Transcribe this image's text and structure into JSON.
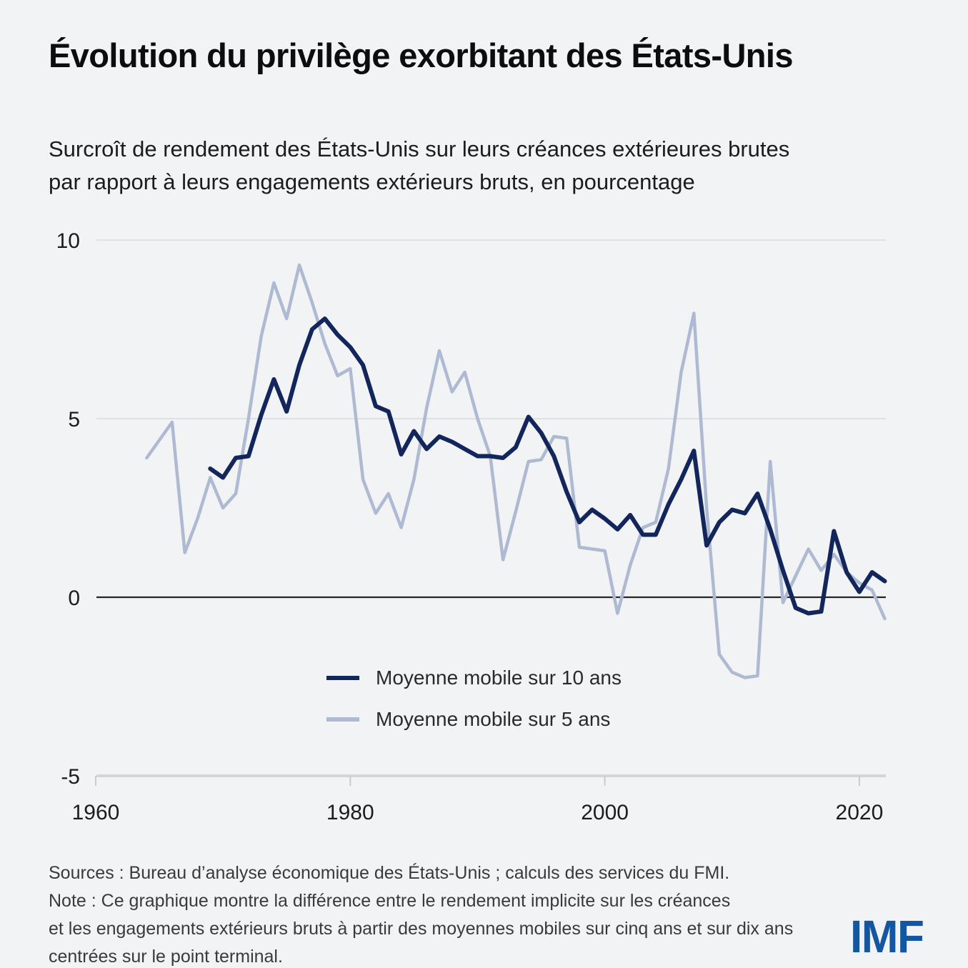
{
  "header": {
    "title": "Évolution du privilège exorbitant des États-Unis",
    "subtitle_lines": [
      "Surcroît de rendement des États-Unis sur leurs créances extérieures brutes",
      "par rapport à leurs engagements extérieurs bruts, en pourcentage"
    ]
  },
  "chart_data": {
    "type": "line",
    "title": "Évolution du privilège exorbitant des États-Unis",
    "ylabel": "pourcentage",
    "xlabel": "",
    "grid": "horizontal",
    "legend_position": "inside-bottom-center",
    "x_axis": {
      "min": 1960,
      "max": 2023,
      "ticks": [
        1960,
        1980,
        2000,
        2020
      ]
    },
    "y_axis": {
      "min": -5,
      "max": 10,
      "ticks": [
        10,
        5,
        0,
        -5
      ]
    },
    "series": [
      {
        "id": "ma10",
        "name": "Moyenne mobile sur 10 ans",
        "color": "#13265c",
        "years": [
          1969,
          1970,
          1971,
          1972,
          1973,
          1974,
          1975,
          1976,
          1977,
          1978,
          1979,
          1980,
          1981,
          1982,
          1983,
          1984,
          1985,
          1986,
          1987,
          1988,
          1989,
          1990,
          1991,
          1992,
          1993,
          1994,
          1995,
          1996,
          1997,
          1998,
          1999,
          2000,
          2001,
          2002,
          2003,
          2004,
          2005,
          2006,
          2007,
          2008,
          2009,
          2010,
          2011,
          2012,
          2013,
          2014,
          2015,
          2016,
          2017,
          2018,
          2019,
          2020,
          2021,
          2022
        ],
        "values": [
          3.6,
          3.35,
          3.9,
          3.95,
          5.1,
          6.1,
          5.2,
          6.5,
          7.5,
          7.8,
          7.35,
          7.0,
          6.5,
          5.35,
          5.2,
          4.0,
          4.65,
          4.15,
          4.5,
          4.35,
          4.15,
          3.95,
          3.95,
          3.9,
          4.2,
          5.05,
          4.6,
          3.95,
          2.95,
          2.1,
          2.45,
          2.2,
          1.9,
          2.3,
          1.75,
          1.75,
          2.6,
          3.3,
          4.1,
          1.45,
          2.1,
          2.45,
          2.35,
          2.9,
          1.9,
          0.75,
          -0.3,
          -0.45,
          -0.4,
          1.85,
          0.7,
          0.15,
          0.7,
          0.45
        ]
      },
      {
        "id": "ma5",
        "name": "Moyenne mobile sur 5 ans",
        "color": "#aeb9d2",
        "years": [
          1964,
          1965,
          1966,
          1967,
          1968,
          1969,
          1970,
          1971,
          1972,
          1973,
          1974,
          1975,
          1976,
          1977,
          1978,
          1979,
          1980,
          1981,
          1982,
          1983,
          1984,
          1985,
          1986,
          1987,
          1988,
          1989,
          1990,
          1991,
          1992,
          1993,
          1994,
          1995,
          1996,
          1997,
          1998,
          1999,
          2000,
          2001,
          2002,
          2003,
          2004,
          2005,
          2006,
          2007,
          2008,
          2009,
          2010,
          2011,
          2012,
          2013,
          2014,
          2015,
          2016,
          2017,
          2018,
          2019,
          2020,
          2021,
          2022
        ],
        "values": [
          3.9,
          4.4,
          4.9,
          1.25,
          2.2,
          3.35,
          2.5,
          2.9,
          5.0,
          7.3,
          8.8,
          7.8,
          9.3,
          8.25,
          7.1,
          6.2,
          6.4,
          3.3,
          2.35,
          2.9,
          1.95,
          3.3,
          5.3,
          6.9,
          5.75,
          6.3,
          5.0,
          3.95,
          1.05,
          2.4,
          3.8,
          3.85,
          4.5,
          4.45,
          1.4,
          1.35,
          1.3,
          -0.45,
          0.9,
          1.95,
          2.1,
          3.6,
          6.3,
          7.95,
          2.5,
          -1.6,
          -2.1,
          -2.25,
          -2.2,
          3.8,
          -0.15,
          0.6,
          1.35,
          0.75,
          1.2,
          0.7,
          0.4,
          0.2,
          -0.6
        ]
      }
    ]
  },
  "legend": {
    "items": [
      {
        "label": "Moyenne mobile sur 10 ans",
        "color": "#13265c"
      },
      {
        "label": "Moyenne mobile sur 5 ans",
        "color": "#aeb9d2"
      }
    ]
  },
  "footer": {
    "lines": [
      "Sources : Bureau d’analyse économique des États-Unis ; calculs des services du FMI.",
      "Note : Ce graphique montre la différence entre le rendement implicite sur les créances",
      "et les engagements extérieurs bruts à partir des moyennes mobiles sur cinq ans et sur dix ans",
      "centrées sur le point terminal."
    ],
    "logo": "IMF",
    "logo_color": "#1457a0"
  }
}
